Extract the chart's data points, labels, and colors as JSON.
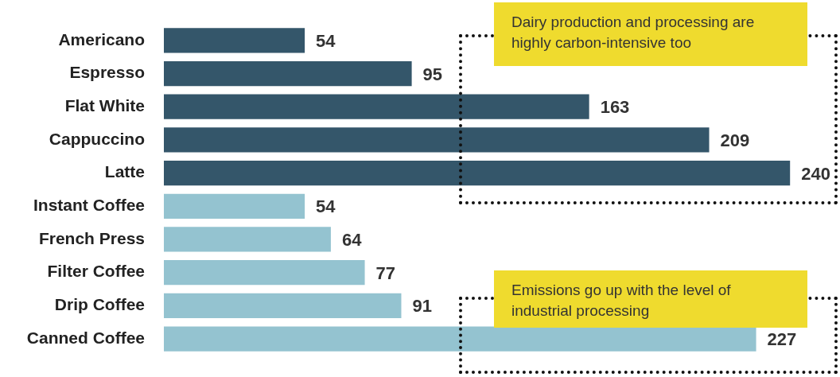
{
  "chart_data": {
    "type": "bar",
    "orientation": "horizontal",
    "categories": [
      "Americano",
      "Espresso",
      "Flat White",
      "Cappuccino",
      "Latte",
      "Instant Coffee",
      "French Press",
      "Filter Coffee",
      "Drip Coffee",
      "Canned Coffee"
    ],
    "values": [
      54,
      95,
      163,
      209,
      240,
      54,
      64,
      77,
      91,
      227
    ],
    "colors": [
      "#34566a",
      "#34566a",
      "#34566a",
      "#34566a",
      "#34566a",
      "#94c3d0",
      "#94c3d0",
      "#94c3d0",
      "#94c3d0",
      "#94c3d0"
    ],
    "data_labels": true,
    "annotations": [
      "Dairy production and processing are highly carbon-intensive too",
      "Emissions go up with the level of industrial processing"
    ]
  }
}
